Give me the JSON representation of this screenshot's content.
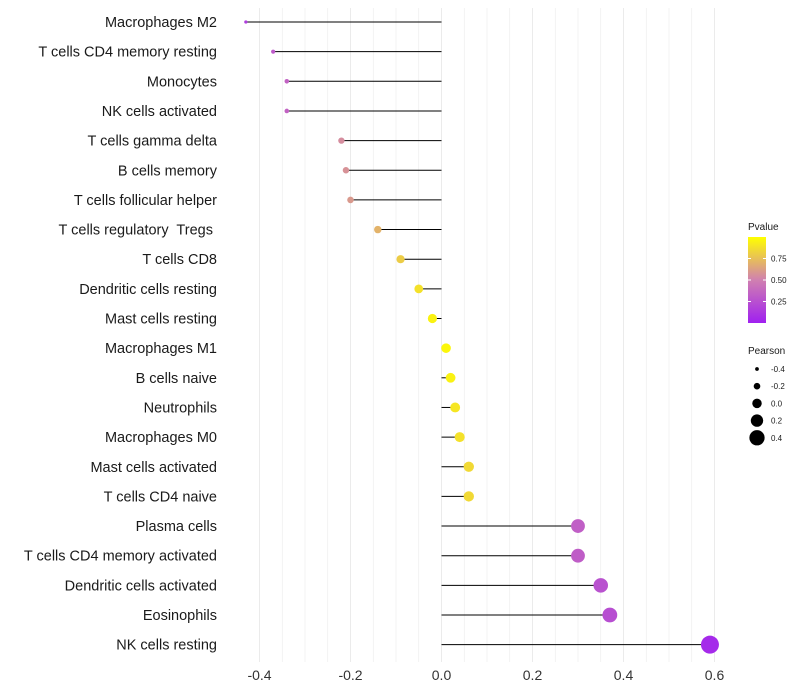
{
  "chart_data": {
    "type": "lollipop",
    "title": "",
    "xlabel": "",
    "ylabel": "",
    "xlim": [
      -0.43,
      0.6
    ],
    "xticks": [
      -0.4,
      -0.2,
      0.0,
      0.2,
      0.4,
      0.6
    ],
    "xtick_labels": [
      "-0.4",
      "-0.2",
      "0.0",
      "0.2",
      "0.4",
      "0.6"
    ],
    "points": [
      {
        "label": "Macrophages M2",
        "pearson": -0.43,
        "pvalue": 0.15
      },
      {
        "label": "T cells CD4 memory resting",
        "pearson": -0.37,
        "pvalue": 0.3
      },
      {
        "label": "Monocytes",
        "pearson": -0.34,
        "pvalue": 0.35
      },
      {
        "label": "NK cells activated",
        "pearson": -0.34,
        "pvalue": 0.35
      },
      {
        "label": "T cells gamma delta",
        "pearson": -0.22,
        "pvalue": 0.55
      },
      {
        "label": "B cells memory",
        "pearson": -0.21,
        "pvalue": 0.57
      },
      {
        "label": "T cells follicular helper",
        "pearson": -0.2,
        "pvalue": 0.6
      },
      {
        "label": "T cells regulatory  Tregs ",
        "pearson": -0.14,
        "pvalue": 0.7
      },
      {
        "label": "T cells CD8",
        "pearson": -0.09,
        "pvalue": 0.8
      },
      {
        "label": "Dendritic cells resting",
        "pearson": -0.05,
        "pvalue": 0.88
      },
      {
        "label": "Mast cells resting",
        "pearson": -0.02,
        "pvalue": 0.95
      },
      {
        "label": "Macrophages M1",
        "pearson": 0.01,
        "pvalue": 0.97
      },
      {
        "label": "B cells naive",
        "pearson": 0.02,
        "pvalue": 0.95
      },
      {
        "label": "Neutrophils",
        "pearson": 0.03,
        "pvalue": 0.9
      },
      {
        "label": "Macrophages M0",
        "pearson": 0.04,
        "pvalue": 0.88
      },
      {
        "label": "Mast cells activated",
        "pearson": 0.06,
        "pvalue": 0.85
      },
      {
        "label": "T cells CD4 naive",
        "pearson": 0.06,
        "pvalue": 0.85
      },
      {
        "label": "Plasma cells",
        "pearson": 0.3,
        "pvalue": 0.33
      },
      {
        "label": "T cells CD4 memory activated",
        "pearson": 0.3,
        "pvalue": 0.32
      },
      {
        "label": "Dendritic cells activated",
        "pearson": 0.35,
        "pvalue": 0.26
      },
      {
        "label": "Eosinophils",
        "pearson": 0.37,
        "pvalue": 0.24
      },
      {
        "label": "NK cells resting",
        "pearson": 0.59,
        "pvalue": 0.05
      }
    ],
    "legend_color": {
      "title": "Pvalue",
      "range": [
        0,
        1
      ],
      "ticks": [
        0.25,
        0.5,
        0.75
      ],
      "tick_labels": [
        "0.25",
        "0.50",
        "0.75"
      ],
      "low_color": "#a020f0",
      "mid_color": "#d080b0",
      "high_color": "#ffff00"
    },
    "legend_size": {
      "title": "Pearson",
      "values": [
        -0.4,
        -0.2,
        0.0,
        0.2,
        0.4
      ],
      "labels": [
        "-0.4",
        "-0.2",
        "0.0",
        "0.2",
        "0.4"
      ]
    },
    "colors": {
      "stem": "#000000",
      "grid": "#ebebeb",
      "background": "#ffffff"
    }
  }
}
